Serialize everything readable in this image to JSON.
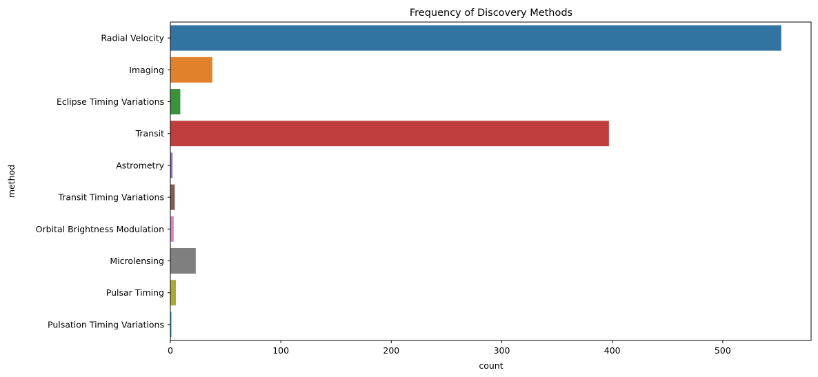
{
  "chart_data": {
    "type": "bar",
    "orientation": "horizontal",
    "title": "Frequency of Discovery Methods",
    "xlabel": "count",
    "ylabel": "method",
    "xlim": [
      0,
      580
    ],
    "xticks": [
      0,
      100,
      200,
      300,
      400,
      500
    ],
    "grid": false,
    "legend": "none",
    "categories": [
      "Radial Velocity",
      "Imaging",
      "Eclipse Timing Variations",
      "Transit",
      "Astrometry",
      "Transit Timing Variations",
      "Orbital Brightness Modulation",
      "Microlensing",
      "Pulsar Timing",
      "Pulsation Timing Variations"
    ],
    "values": [
      553,
      38,
      9,
      397,
      2,
      4,
      3,
      23,
      5,
      1
    ],
    "colors": [
      "#3274a1",
      "#e1812c",
      "#3a923a",
      "#c03d3e",
      "#9372b2",
      "#845b53",
      "#d684bd",
      "#7f7f7f",
      "#a9aa35",
      "#2eb4c2"
    ]
  }
}
